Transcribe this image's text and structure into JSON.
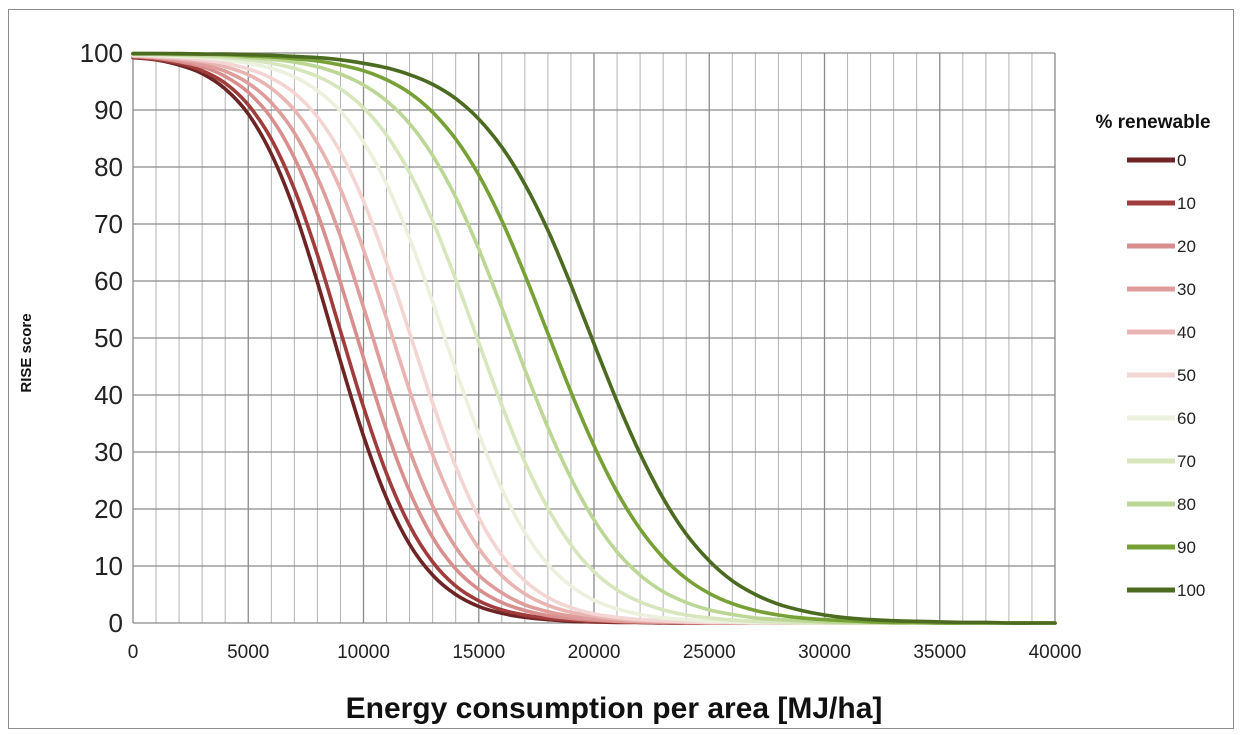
{
  "chart_data": {
    "type": "line",
    "title": "",
    "xlabel": "Energy consumption per area [MJ/ha]",
    "ylabel": "RISE score",
    "xlim": [
      0,
      40000
    ],
    "ylim": [
      0,
      100
    ],
    "x_ticks": [
      "0",
      "5000",
      "10000",
      "15000",
      "20000",
      "25000",
      "30000",
      "35000",
      "40000"
    ],
    "y_ticks": [
      "0",
      "10",
      "20",
      "30",
      "40",
      "50",
      "60",
      "70",
      "80",
      "90",
      "100"
    ],
    "x_minor_step": 1000,
    "y_major_step": 10,
    "grid": true,
    "legend": {
      "title": "% renewable",
      "placement": "right"
    },
    "x": [
      0,
      1000,
      2000,
      3000,
      4000,
      5000,
      6000,
      7000,
      8000,
      9000,
      10000,
      11000,
      12000,
      13000,
      14000,
      15000,
      16000,
      17000,
      18000,
      19000,
      20000,
      21000,
      22000,
      23000,
      24000,
      25000,
      26000,
      27000,
      28000,
      29000,
      30000,
      31000,
      32000,
      33000,
      34000,
      35000,
      36000,
      37000,
      38000,
      39000,
      40000
    ],
    "series": [
      {
        "name": "0",
        "color": "#6e2424",
        "values": [
          99.2,
          98.8,
          97.9,
          96.4,
          93.7,
          89.3,
          82.3,
          72.4,
          59.8,
          45.9,
          32.8,
          21.9,
          13.8,
          8.4,
          5.0,
          2.9,
          1.7,
          1.0,
          0.6,
          0.3,
          0.2,
          0.1,
          0.1,
          0.0,
          0.0,
          0.0,
          0.0,
          0.0,
          0.0,
          0.0,
          0.0,
          0.0,
          0.0,
          0.0,
          0.0,
          0.0,
          0.0,
          0.0,
          0.0,
          0.0,
          0.0
        ]
      },
      {
        "name": "10",
        "color": "#a13c3c",
        "values": [
          99.3,
          98.9,
          98.2,
          96.9,
          94.7,
          90.9,
          84.9,
          76.1,
          64.6,
          51.2,
          37.9,
          26.2,
          17.1,
          10.7,
          6.5,
          3.9,
          2.3,
          1.4,
          0.8,
          0.5,
          0.3,
          0.2,
          0.1,
          0.1,
          0.0,
          0.0,
          0.0,
          0.0,
          0.0,
          0.0,
          0.0,
          0.0,
          0.0,
          0.0,
          0.0,
          0.0,
          0.0,
          0.0,
          0.0,
          0.0,
          0.0
        ]
      },
      {
        "name": "20",
        "color": "#d88e8c",
        "values": [
          99.4,
          99.1,
          98.5,
          97.6,
          95.9,
          93.1,
          88.6,
          81.6,
          71.9,
          59.7,
          46.5,
          33.8,
          23.1,
          15.0,
          9.5,
          5.9,
          3.6,
          2.2,
          1.3,
          0.8,
          0.5,
          0.3,
          0.2,
          0.1,
          0.1,
          0.0,
          0.0,
          0.0,
          0.0,
          0.0,
          0.0,
          0.0,
          0.0,
          0.0,
          0.0,
          0.0,
          0.0,
          0.0,
          0.0,
          0.0,
          0.0
        ]
      },
      {
        "name": "30",
        "color": "#de9c9a",
        "values": [
          99.5,
          99.2,
          98.8,
          98.0,
          96.8,
          94.7,
          91.3,
          86.0,
          78.2,
          67.8,
          55.4,
          42.3,
          30.3,
          20.5,
          13.3,
          8.4,
          5.3,
          3.2,
          2.0,
          1.2,
          0.7,
          0.4,
          0.3,
          0.2,
          0.1,
          0.1,
          0.0,
          0.0,
          0.0,
          0.0,
          0.0,
          0.0,
          0.0,
          0.0,
          0.0,
          0.0,
          0.0,
          0.0,
          0.0,
          0.0,
          0.0
        ]
      },
      {
        "name": "40",
        "color": "#e8b5b3",
        "values": [
          99.5,
          99.3,
          99.0,
          98.5,
          97.6,
          96.2,
          93.8,
          90.0,
          84.2,
          76.1,
          65.5,
          53.4,
          40.8,
          29.5,
          20.1,
          13.1,
          8.3,
          5.1,
          3.1,
          1.9,
          1.2,
          0.7,
          0.4,
          0.3,
          0.2,
          0.1,
          0.1,
          0.0,
          0.0,
          0.0,
          0.0,
          0.0,
          0.0,
          0.0,
          0.0,
          0.0,
          0.0,
          0.0,
          0.0,
          0.0,
          0.0
        ]
      },
      {
        "name": "50",
        "color": "#f3d6d4",
        "values": [
          99.6,
          99.4,
          99.2,
          98.8,
          98.2,
          97.2,
          95.6,
          93.0,
          88.8,
          82.6,
          74.0,
          63.2,
          50.9,
          38.6,
          27.5,
          18.5,
          11.9,
          7.4,
          4.5,
          2.7,
          1.6,
          1.0,
          0.6,
          0.4,
          0.2,
          0.1,
          0.1,
          0.0,
          0.0,
          0.0,
          0.0,
          0.0,
          0.0,
          0.0,
          0.0,
          0.0,
          0.0,
          0.0,
          0.0,
          0.0,
          0.0
        ]
      },
      {
        "name": "60",
        "color": "#ecf1dd",
        "values": [
          99.7,
          99.6,
          99.4,
          99.2,
          98.8,
          98.2,
          97.3,
          95.8,
          93.4,
          89.8,
          84.4,
          77.0,
          67.5,
          56.3,
          44.4,
          33.2,
          23.5,
          15.9,
          10.3,
          6.5,
          4.0,
          2.5,
          1.5,
          0.9,
          0.6,
          0.3,
          0.2,
          0.1,
          0.1,
          0.0,
          0.0,
          0.0,
          0.0,
          0.0,
          0.0,
          0.0,
          0.0,
          0.0,
          0.0,
          0.0,
          0.0
        ]
      },
      {
        "name": "70",
        "color": "#d8e6bd",
        "values": [
          99.8,
          99.7,
          99.6,
          99.4,
          99.2,
          98.8,
          98.2,
          97.3,
          95.9,
          93.7,
          90.4,
          85.6,
          79.0,
          70.5,
          60.3,
          49.2,
          38.2,
          28.3,
          20.1,
          13.7,
          9.0,
          5.8,
          3.7,
          2.3,
          1.4,
          0.9,
          0.5,
          0.3,
          0.2,
          0.1,
          0.1,
          0.0,
          0.0,
          0.0,
          0.0,
          0.0,
          0.0,
          0.0,
          0.0,
          0.0,
          0.0
        ]
      },
      {
        "name": "80",
        "color": "#bcd795",
        "values": [
          99.8,
          99.8,
          99.7,
          99.6,
          99.5,
          99.2,
          98.9,
          98.4,
          97.6,
          96.3,
          94.4,
          91.6,
          87.6,
          82.0,
          74.7,
          65.6,
          55.3,
          44.5,
          34.3,
          25.4,
          18.1,
          12.5,
          8.4,
          5.5,
          3.6,
          2.3,
          1.5,
          0.9,
          0.6,
          0.4,
          0.2,
          0.1,
          0.1,
          0.0,
          0.0,
          0.0,
          0.0,
          0.0,
          0.0,
          0.0,
          0.0
        ]
      },
      {
        "name": "90",
        "color": "#77a136",
        "values": [
          99.9,
          99.9,
          99.8,
          99.8,
          99.7,
          99.5,
          99.3,
          99.0,
          98.6,
          97.9,
          96.9,
          95.3,
          93.0,
          89.6,
          84.9,
          78.6,
          70.6,
          61.1,
          50.8,
          40.5,
          31.1,
          23.0,
          16.5,
          11.5,
          7.8,
          5.2,
          3.4,
          2.2,
          1.4,
          0.9,
          0.6,
          0.4,
          0.2,
          0.1,
          0.1,
          0.0,
          0.0,
          0.0,
          0.0,
          0.0,
          0.0
        ]
      },
      {
        "name": "100",
        "color": "#4b6b20",
        "values": [
          99.9,
          99.9,
          99.9,
          99.8,
          99.8,
          99.7,
          99.6,
          99.4,
          99.2,
          98.8,
          98.2,
          97.4,
          96.2,
          94.5,
          92.0,
          88.4,
          83.5,
          77.0,
          68.9,
          59.3,
          49.0,
          38.9,
          29.7,
          21.9,
          15.6,
          10.9,
          7.4,
          5.0,
          3.3,
          2.2,
          1.4,
          0.9,
          0.6,
          0.4,
          0.3,
          0.2,
          0.1,
          0.1,
          0.0,
          0.0,
          0.0
        ]
      }
    ]
  }
}
